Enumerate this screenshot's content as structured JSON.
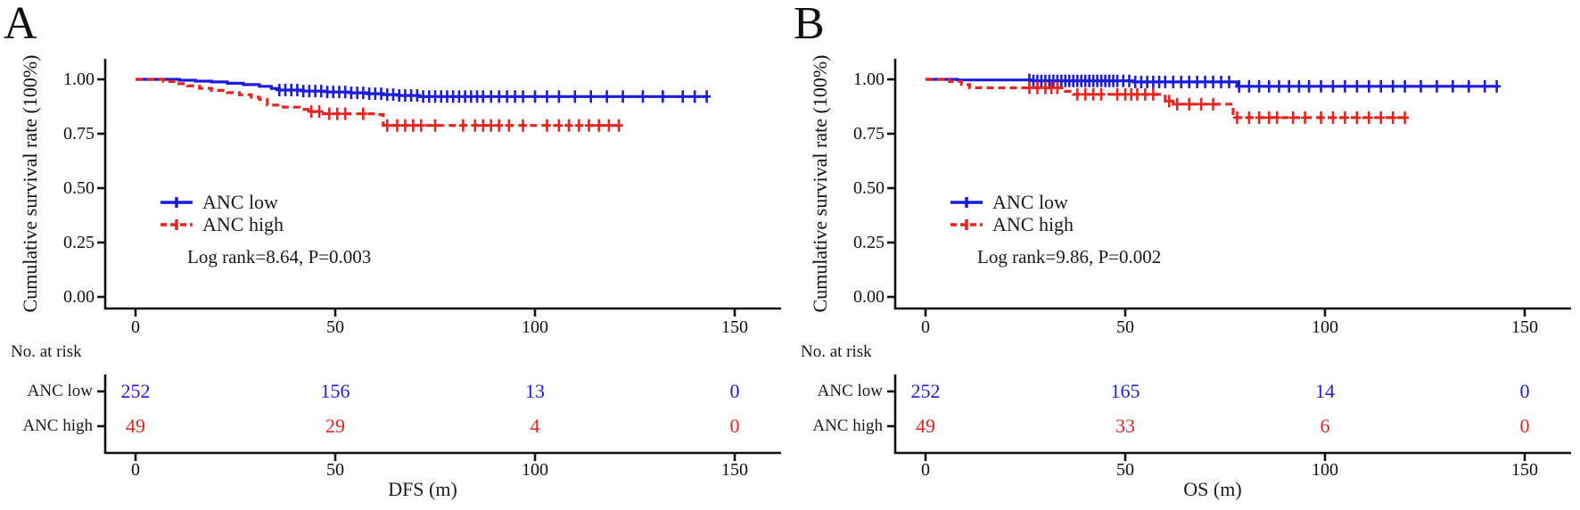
{
  "figure": {
    "colors": {
      "blue": "#1c1cdf",
      "red": "#e8241f",
      "axis": "#111111"
    }
  },
  "chart_data": [
    {
      "panel_label": "A",
      "type": "line",
      "subtype": "kaplan-meier-step",
      "title": "",
      "xlabel": "DFS (m)",
      "ylabel": "Cumulative survival rate (100%)",
      "xlim": [
        0,
        162
      ],
      "ylim": [
        0,
        1.05
      ],
      "xticks": [
        0,
        50,
        100,
        150
      ],
      "xtick_labels": [
        "0",
        "50",
        "100",
        "150"
      ],
      "yticks": [
        1.0,
        0.75,
        0.5,
        0.25,
        0.0
      ],
      "ytick_labels": [
        "1.00",
        "0.75",
        "0.50",
        "0.25",
        "0.00"
      ],
      "grid": false,
      "legend_position": "center-left",
      "annotation": "Log rank=8.64, P=0.003",
      "series": [
        {
          "name": "ANC low",
          "color_key": "blue",
          "line_style": "solid",
          "steps": [
            [
              0,
              1.0
            ],
            [
              9,
              1.0
            ],
            [
              11,
              0.996
            ],
            [
              15,
              0.992
            ],
            [
              19,
              0.988
            ],
            [
              23,
              0.982
            ],
            [
              27,
              0.976
            ],
            [
              31,
              0.968
            ],
            [
              34,
              0.958
            ],
            [
              36,
              0.951
            ],
            [
              42,
              0.946
            ],
            [
              48,
              0.942
            ],
            [
              54,
              0.938
            ],
            [
              58,
              0.934
            ],
            [
              62,
              0.93
            ],
            [
              66,
              0.926
            ],
            [
              71,
              0.921
            ],
            [
              143,
              0.921
            ]
          ],
          "censor_x": [
            36,
            37.5,
            39,
            40.5,
            42,
            43.5,
            45,
            46.5,
            48,
            49.5,
            51,
            52.5,
            54,
            55.5,
            57,
            58.5,
            60,
            61.5,
            63,
            64.5,
            66,
            67.5,
            69,
            70.5,
            72,
            73.5,
            75,
            76.5,
            78,
            79.5,
            81,
            82.5,
            84,
            85.5,
            87,
            89,
            91,
            93,
            95,
            97,
            100,
            103,
            106,
            110,
            114,
            118,
            122,
            127,
            132,
            137,
            140,
            143
          ]
        },
        {
          "name": "ANC high",
          "color_key": "red",
          "line_style": "dashed",
          "steps": [
            [
              0,
              1.0
            ],
            [
              5,
              1.0
            ],
            [
              7,
              0.99
            ],
            [
              10,
              0.98
            ],
            [
              13,
              0.97
            ],
            [
              16,
              0.959
            ],
            [
              19,
              0.949
            ],
            [
              23,
              0.939
            ],
            [
              26,
              0.929
            ],
            [
              29,
              0.918
            ],
            [
              31,
              0.908
            ],
            [
              33,
              0.882
            ],
            [
              37,
              0.872
            ],
            [
              41,
              0.862
            ],
            [
              44,
              0.852
            ],
            [
              47,
              0.842
            ],
            [
              60,
              0.838
            ],
            [
              62,
              0.788
            ],
            [
              121,
              0.788
            ]
          ],
          "censor_x": [
            44,
            46,
            48.5,
            50.5,
            52.5,
            57,
            63,
            65.5,
            67.5,
            69.5,
            71.5,
            75,
            82,
            85,
            87,
            89,
            91,
            93.5,
            97,
            103,
            106,
            108.5,
            111,
            113.5,
            116,
            118.5,
            121
          ]
        }
      ],
      "risk_table": {
        "header": "No. at risk",
        "time_points": [
          0,
          50,
          100,
          150
        ],
        "rows": [
          {
            "name": "ANC low",
            "color_key": "blue",
            "values": [
              252,
              156,
              13,
              0
            ]
          },
          {
            "name": "ANC high",
            "color_key": "red",
            "values": [
              49,
              29,
              4,
              0
            ]
          }
        ]
      }
    },
    {
      "panel_label": "B",
      "type": "line",
      "subtype": "kaplan-meier-step",
      "title": "",
      "xlabel": "OS (m)",
      "ylabel": "Cumulative survival rate (100%)",
      "xlim": [
        0,
        162
      ],
      "ylim": [
        0,
        1.05
      ],
      "xticks": [
        0,
        50,
        100,
        150
      ],
      "xtick_labels": [
        "0",
        "50",
        "100",
        "150"
      ],
      "yticks": [
        1.0,
        0.75,
        0.5,
        0.25,
        0.0
      ],
      "ytick_labels": [
        "1.00",
        "0.75",
        "0.50",
        "0.25",
        "0.00"
      ],
      "grid": false,
      "legend_position": "center-left",
      "annotation": "Log rank=9.86, P=0.002",
      "series": [
        {
          "name": "ANC low",
          "color_key": "blue",
          "line_style": "solid",
          "steps": [
            [
              0,
              1.0
            ],
            [
              6,
              1.0
            ],
            [
              8,
              0.997
            ],
            [
              25,
              0.997
            ],
            [
              27,
              0.993
            ],
            [
              50,
              0.993
            ],
            [
              52,
              0.988
            ],
            [
              76,
              0.988
            ],
            [
              78,
              0.968
            ],
            [
              143,
              0.968
            ]
          ],
          "censor_x": [
            26,
            27,
            28,
            29,
            30,
            31,
            32,
            33,
            34,
            35,
            36,
            37,
            38,
            39,
            40,
            41,
            42,
            43,
            44,
            45,
            46,
            47,
            48,
            49.5,
            51,
            52.5,
            54,
            55.5,
            57,
            58.5,
            60,
            62,
            64,
            66,
            68,
            70,
            72,
            74,
            76,
            78.5,
            81,
            83.5,
            86,
            88.5,
            91,
            93.5,
            96,
            99,
            102,
            105,
            108,
            111,
            114,
            117,
            120,
            124,
            128,
            132,
            136,
            140,
            143
          ]
        },
        {
          "name": "ANC high",
          "color_key": "red",
          "line_style": "dashed",
          "steps": [
            [
              0,
              1.0
            ],
            [
              5,
              1.0
            ],
            [
              6,
              0.99
            ],
            [
              9,
              0.976
            ],
            [
              11,
              0.961
            ],
            [
              34,
              0.961
            ],
            [
              35,
              0.945
            ],
            [
              37,
              0.931
            ],
            [
              59,
              0.931
            ],
            [
              60,
              0.9
            ],
            [
              62,
              0.886
            ],
            [
              75,
              0.886
            ],
            [
              77,
              0.824
            ],
            [
              120,
              0.824
            ]
          ],
          "censor_x": [
            26,
            28,
            30,
            31.5,
            33,
            38,
            40,
            42,
            44,
            48,
            50,
            51.5,
            53,
            55,
            57,
            61,
            63,
            66,
            69,
            72,
            78,
            81,
            83.5,
            86,
            88,
            92,
            95,
            99,
            102,
            105,
            108,
            111,
            114,
            117,
            120
          ]
        }
      ],
      "risk_table": {
        "header": "No. at risk",
        "time_points": [
          0,
          50,
          100,
          150
        ],
        "rows": [
          {
            "name": "ANC low",
            "color_key": "blue",
            "values": [
              252,
              165,
              14,
              0
            ]
          },
          {
            "name": "ANC high",
            "color_key": "red",
            "values": [
              49,
              33,
              6,
              0
            ]
          }
        ]
      }
    }
  ]
}
